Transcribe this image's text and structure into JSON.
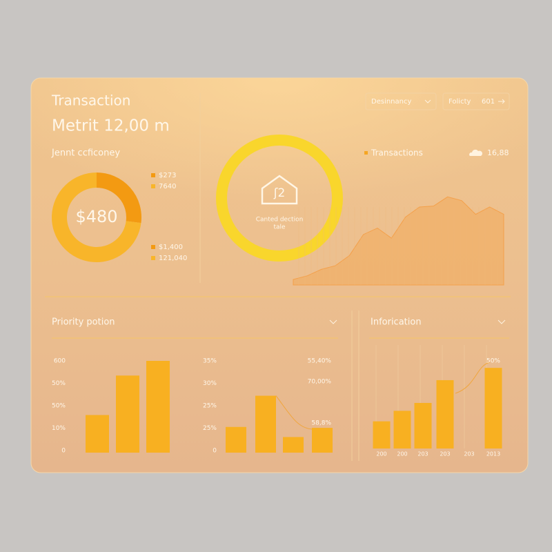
{
  "header": {
    "title": "Transaction",
    "metric": "Metrit 12,00 m",
    "dropdown": "Desinnancy",
    "filter": "Folicty",
    "filter_value": "601"
  },
  "donut": {
    "label": "Jennt ccficoney",
    "center": "$480",
    "values": [
      27,
      73
    ],
    "colors": [
      "#f39a12",
      "#f8b52a"
    ],
    "legend": [
      "$273",
      "7640",
      "$1,400",
      "121,040"
    ]
  },
  "ring": {
    "icon_text": "ʃ2",
    "caption_1": "Canted dection",
    "caption_2": "tale"
  },
  "area": {
    "legend": "Transactions",
    "value": "16,88",
    "ylim": [
      0,
      100
    ],
    "values": [
      6,
      10,
      17,
      21,
      32,
      55,
      62,
      51,
      74,
      85,
      86,
      96,
      92,
      77,
      85,
      77
    ]
  },
  "priority": {
    "title": "Priority potion",
    "ylim": [
      0,
      100
    ],
    "chart_1": {
      "tick_labels": [
        "600",
        "50%",
        "50%",
        "10%",
        "0"
      ],
      "values": [
        41,
        84,
        100
      ]
    },
    "chart_2": {
      "tick_labels": [
        "35%",
        "30%",
        "25%",
        "25%",
        "0"
      ],
      "right_labels": [
        "55,40%",
        "70,00%",
        "58,8%"
      ],
      "values": [
        28,
        62,
        17,
        27
      ]
    }
  },
  "info": {
    "title": "Inforication",
    "ylim": [
      0,
      100
    ],
    "top_label": "50%",
    "categories": [
      "200",
      "200",
      "203",
      "203",
      "203",
      "2013"
    ],
    "values": [
      31,
      43,
      52,
      78,
      null,
      92
    ]
  }
}
